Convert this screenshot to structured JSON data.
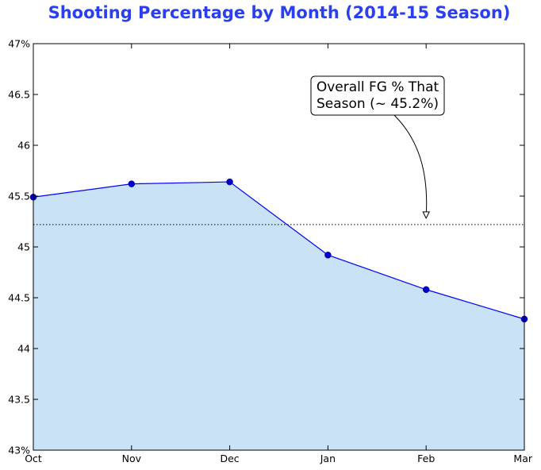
{
  "chart_data": {
    "type": "area",
    "title": "Shooting Percentage by Month (2014-15 Season)",
    "categories": [
      "Oct",
      "Nov",
      "Dec",
      "Jan",
      "Feb",
      "Mar"
    ],
    "series": [
      {
        "values": [
          45.49,
          45.62,
          45.64,
          44.92,
          44.58,
          44.29
        ]
      }
    ],
    "xlabel": "",
    "ylabel": "",
    "ylim": [
      43,
      47
    ],
    "yticks": [
      43,
      43.5,
      44,
      44.5,
      45,
      45.5,
      46,
      46.5,
      47
    ],
    "ytick_labels": [
      "43%",
      "43.5",
      "44",
      "44.5",
      "45",
      "45.5",
      "46",
      "46.5",
      "47%"
    ],
    "reference_line": {
      "value": 45.22,
      "style": "dotted"
    },
    "annotation": {
      "lines": [
        "Overall FG % That",
        "Season (~ 45.2%)"
      ],
      "points_to": {
        "category": "Feb",
        "value": 45.22
      }
    },
    "grid": false,
    "legend": "none",
    "colors": {
      "title": "#2a3ff0",
      "line": "#0000ff",
      "marker": "#0000cc",
      "fill": "#c9e2f6"
    }
  }
}
